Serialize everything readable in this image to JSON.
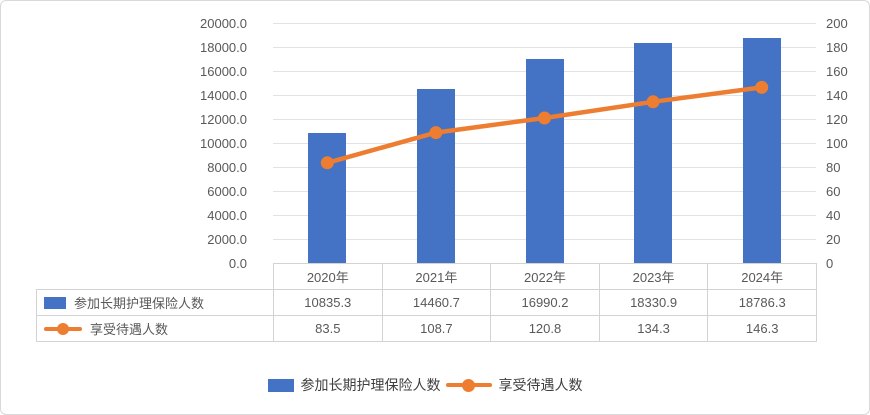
{
  "chart_data": {
    "type": "bar",
    "subtype": "combo-bar-line-with-data-table",
    "categories": [
      "2020年",
      "2021年",
      "2022年",
      "2023年",
      "2024年"
    ],
    "series": [
      {
        "name": "参加长期护理保险人数",
        "chart": "bar",
        "axis": "left",
        "color": "#4472C4",
        "values": [
          10835.3,
          14460.7,
          16990.2,
          18330.9,
          18786.3
        ],
        "display": [
          "10835.3",
          "14460.7",
          "16990.2",
          "18330.9",
          "18786.3"
        ]
      },
      {
        "name": "享受待遇人数",
        "chart": "line",
        "axis": "right",
        "color": "#ED7D31",
        "values": [
          83.5,
          108.7,
          120.8,
          134.3,
          146.3
        ],
        "display": [
          "83.5",
          "108.7",
          "120.8",
          "134.3",
          "146.3"
        ]
      }
    ],
    "title": "",
    "xlabel": "",
    "ylabel": "",
    "left_axis": {
      "min": 0,
      "max": 20000,
      "step": 2000,
      "tick_labels_top_down": [
        "20000.0",
        "18000.0",
        "16000.0",
        "14000.0",
        "12000.0",
        "10000.0",
        "8000.0",
        "6000.0",
        "4000.0",
        "2000.0",
        "0.0"
      ]
    },
    "right_axis": {
      "min": 0,
      "max": 200,
      "step": 20,
      "tick_labels_top_down": [
        "200",
        "180",
        "160",
        "140",
        "120",
        "100",
        "80",
        "60",
        "40",
        "20",
        "0"
      ]
    },
    "grid": true,
    "legend_position": "bottom",
    "data_table_visible": true
  },
  "legend": {
    "items": [
      {
        "label": "参加长期护理保险人数",
        "swatch": "bar",
        "color": "#4472C4"
      },
      {
        "label": "享受待遇人数",
        "swatch": "line-marker",
        "color": "#ED7D31"
      }
    ]
  },
  "colors": {
    "bar": "#4472C4",
    "line": "#ED7D31",
    "gridline": "#e2e2e2",
    "table_border": "#d3d3d3",
    "axis_text": "#595959",
    "legend_text": "#3f3f3f",
    "frame_border": "#d9d9d9"
  }
}
